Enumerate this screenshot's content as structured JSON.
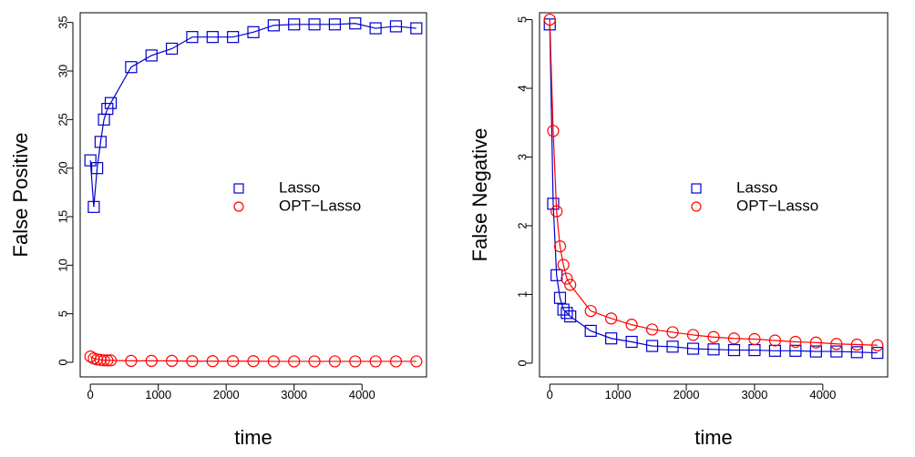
{
  "chart_data": [
    {
      "type": "line",
      "title": "",
      "xlabel": "time",
      "ylabel": "False Positive",
      "xlim": [
        -150,
        4950
      ],
      "ylim": [
        -1.5,
        36
      ],
      "xticks": [
        0,
        1000,
        2000,
        3000,
        4000
      ],
      "yticks": [
        0,
        5,
        10,
        15,
        20,
        25,
        30,
        35
      ],
      "x": [
        0,
        50,
        100,
        150,
        200,
        250,
        300,
        600,
        900,
        1200,
        1500,
        1800,
        2100,
        2400,
        2700,
        3000,
        3300,
        3600,
        3900,
        4200,
        4500,
        4800
      ],
      "series": [
        {
          "name": "Lasso",
          "color": "#0000cc",
          "marker": "square",
          "values": [
            20.8,
            16.0,
            20.0,
            22.7,
            25.0,
            26.1,
            26.7,
            30.4,
            31.6,
            32.3,
            33.5,
            33.5,
            33.5,
            34.0,
            34.7,
            34.8,
            34.8,
            34.8,
            34.9,
            34.4,
            34.6,
            34.4
          ]
        },
        {
          "name": "OPT−Lasso",
          "color": "#ff0000",
          "marker": "circle",
          "values": [
            0.6,
            0.4,
            0.3,
            0.25,
            0.2,
            0.2,
            0.2,
            0.15,
            0.15,
            0.15,
            0.12,
            0.12,
            0.12,
            0.12,
            0.1,
            0.1,
            0.1,
            0.1,
            0.1,
            0.1,
            0.1,
            0.1
          ]
        }
      ],
      "legend_position": "center-right"
    },
    {
      "type": "line",
      "title": "",
      "xlabel": "time",
      "ylabel": "False Negative",
      "xlim": [
        -150,
        4950
      ],
      "ylim": [
        -0.2,
        5.1
      ],
      "xticks": [
        0,
        1000,
        2000,
        3000,
        4000
      ],
      "yticks": [
        0,
        1,
        2,
        3,
        4,
        5
      ],
      "x": [
        0,
        50,
        100,
        150,
        200,
        250,
        300,
        600,
        900,
        1200,
        1500,
        1800,
        2100,
        2400,
        2700,
        3000,
        3300,
        3600,
        3900,
        4200,
        4500,
        4800
      ],
      "series": [
        {
          "name": "Lasso",
          "color": "#0000cc",
          "marker": "square",
          "values": [
            4.93,
            2.32,
            1.28,
            0.95,
            0.78,
            0.73,
            0.68,
            0.47,
            0.36,
            0.31,
            0.25,
            0.24,
            0.21,
            0.2,
            0.19,
            0.19,
            0.18,
            0.18,
            0.17,
            0.17,
            0.16,
            0.15
          ]
        },
        {
          "name": "OPT−Lasso",
          "color": "#ff0000",
          "marker": "circle",
          "values": [
            5.0,
            3.38,
            2.21,
            1.7,
            1.43,
            1.23,
            1.14,
            0.76,
            0.65,
            0.56,
            0.49,
            0.45,
            0.41,
            0.38,
            0.36,
            0.35,
            0.33,
            0.31,
            0.3,
            0.28,
            0.27,
            0.26
          ]
        }
      ],
      "legend_position": "center-right"
    }
  ]
}
